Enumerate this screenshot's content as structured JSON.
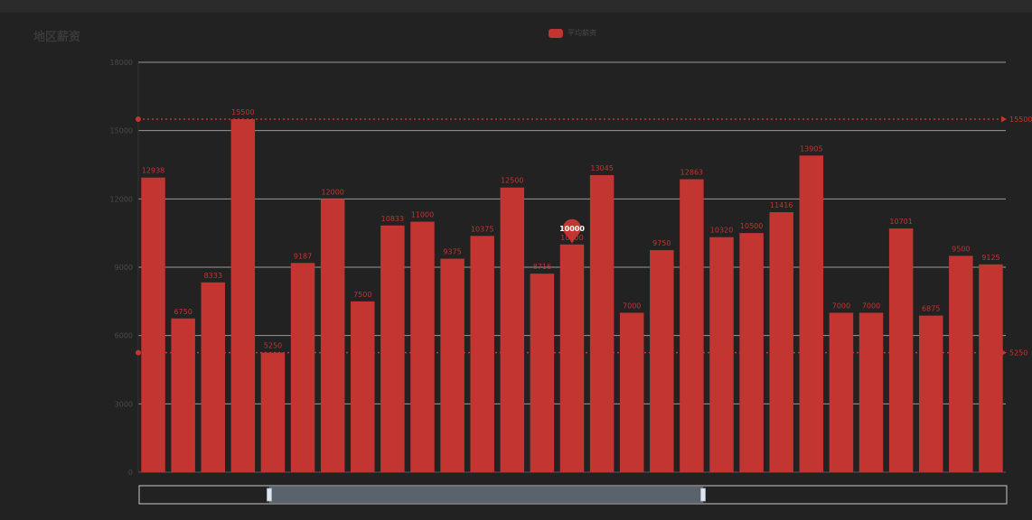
{
  "title": "地区薪资",
  "legend": {
    "label": "平均薪资"
  },
  "colors": {
    "bar": "#c23531",
    "grid": "#9a9a9a",
    "axis_text": "#4a4a4a",
    "mark_line": "#c23531",
    "zoom_fill": "#5a626c",
    "zoom_border": "#a9b4c2"
  },
  "chart_data": {
    "type": "bar",
    "title": "地区薪资",
    "series": [
      {
        "name": "平均薪资",
        "values": [
          12938,
          6750,
          8333,
          15500,
          5250,
          9187,
          12000,
          7500,
          10833,
          11000,
          9375,
          10375,
          12500,
          8716,
          10000,
          13045,
          7000,
          9750,
          12863,
          10320,
          10500,
          11416,
          13905,
          7000,
          7000,
          10701,
          6875,
          9500,
          9125
        ]
      }
    ],
    "categories": [
      "",
      "",
      "",
      "",
      "",
      "",
      "",
      "",
      "",
      "",
      "",
      "",
      "",
      "",
      "",
      "",
      "",
      "",
      "",
      "",
      "",
      "",
      "",
      "",
      "",
      "",
      "",
      "",
      ""
    ],
    "ylim": [
      0,
      18000
    ],
    "yticks": [
      "0",
      "3000",
      "6000",
      "9000",
      "12000",
      "15000",
      "18000"
    ],
    "mark_line_max": {
      "value": 15500,
      "label": "15500"
    },
    "mark_line_min": {
      "value": 5250,
      "label": "5250"
    },
    "mark_point": {
      "category_index": 14,
      "value": 10000,
      "label": "10000"
    },
    "grid": true,
    "legend_position": "top-center",
    "data_zoom": {
      "start": 0.15,
      "end": 0.65
    }
  }
}
